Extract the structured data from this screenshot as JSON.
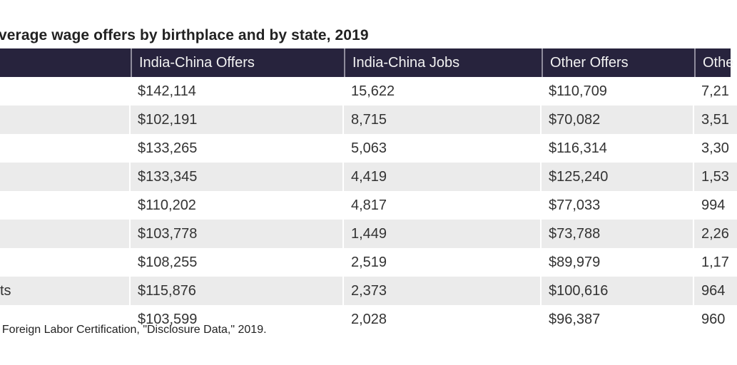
{
  "title": "verage wage offers by birthplace and by state, 2019",
  "columns": [
    "",
    "India-China Offers",
    "India-China Jobs",
    "Other Offers",
    "Othe"
  ],
  "rows": [
    [
      "",
      "$142,114",
      "15,622",
      "$110,709",
      "7,21"
    ],
    [
      "",
      "$102,191",
      "8,715",
      "$70,082",
      "3,51"
    ],
    [
      "",
      "$133,265",
      "5,063",
      "$116,314",
      "3,30"
    ],
    [
      "",
      "$133,345",
      "4,419",
      "$125,240",
      "1,53"
    ],
    [
      "",
      "$110,202",
      "4,817",
      "$77,033",
      "994"
    ],
    [
      "",
      "$103,778",
      "1,449",
      "$73,788",
      "2,26"
    ],
    [
      "",
      "$108,255",
      "2,519",
      "$89,979",
      "1,17"
    ],
    [
      "ts",
      "$115,876",
      "2,373",
      "$100,616",
      "964"
    ],
    [
      "",
      "$103,599",
      "2,028",
      "$96,387",
      "960"
    ]
  ],
  "source_note": "f Foreign Labor Certification, \"Disclosure Data,\" 2019.",
  "colors": {
    "header_bg": "#27233d",
    "stripe": "#ebebeb"
  }
}
